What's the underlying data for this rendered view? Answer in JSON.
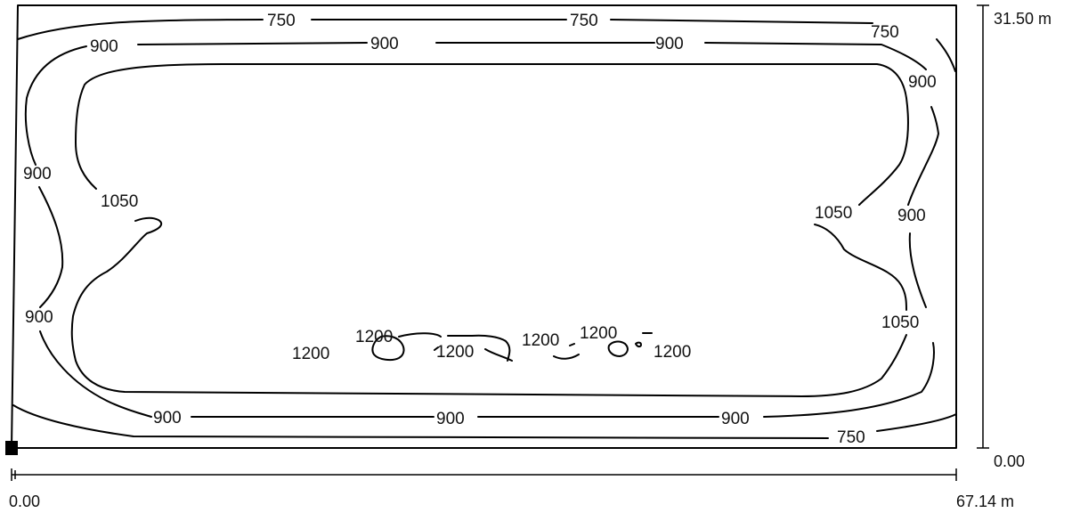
{
  "diagram": {
    "width_range": {
      "start_label": "0.00",
      "end_label": "67.14 m"
    },
    "height_range": {
      "start_label": "0.00",
      "end_label": "31.50 m"
    },
    "isoline_labels": {
      "l750": "750",
      "l900": "900",
      "l1050": "1050",
      "l1200": "1200"
    },
    "colors": {
      "line": "#000000",
      "background": "#ffffff"
    }
  }
}
